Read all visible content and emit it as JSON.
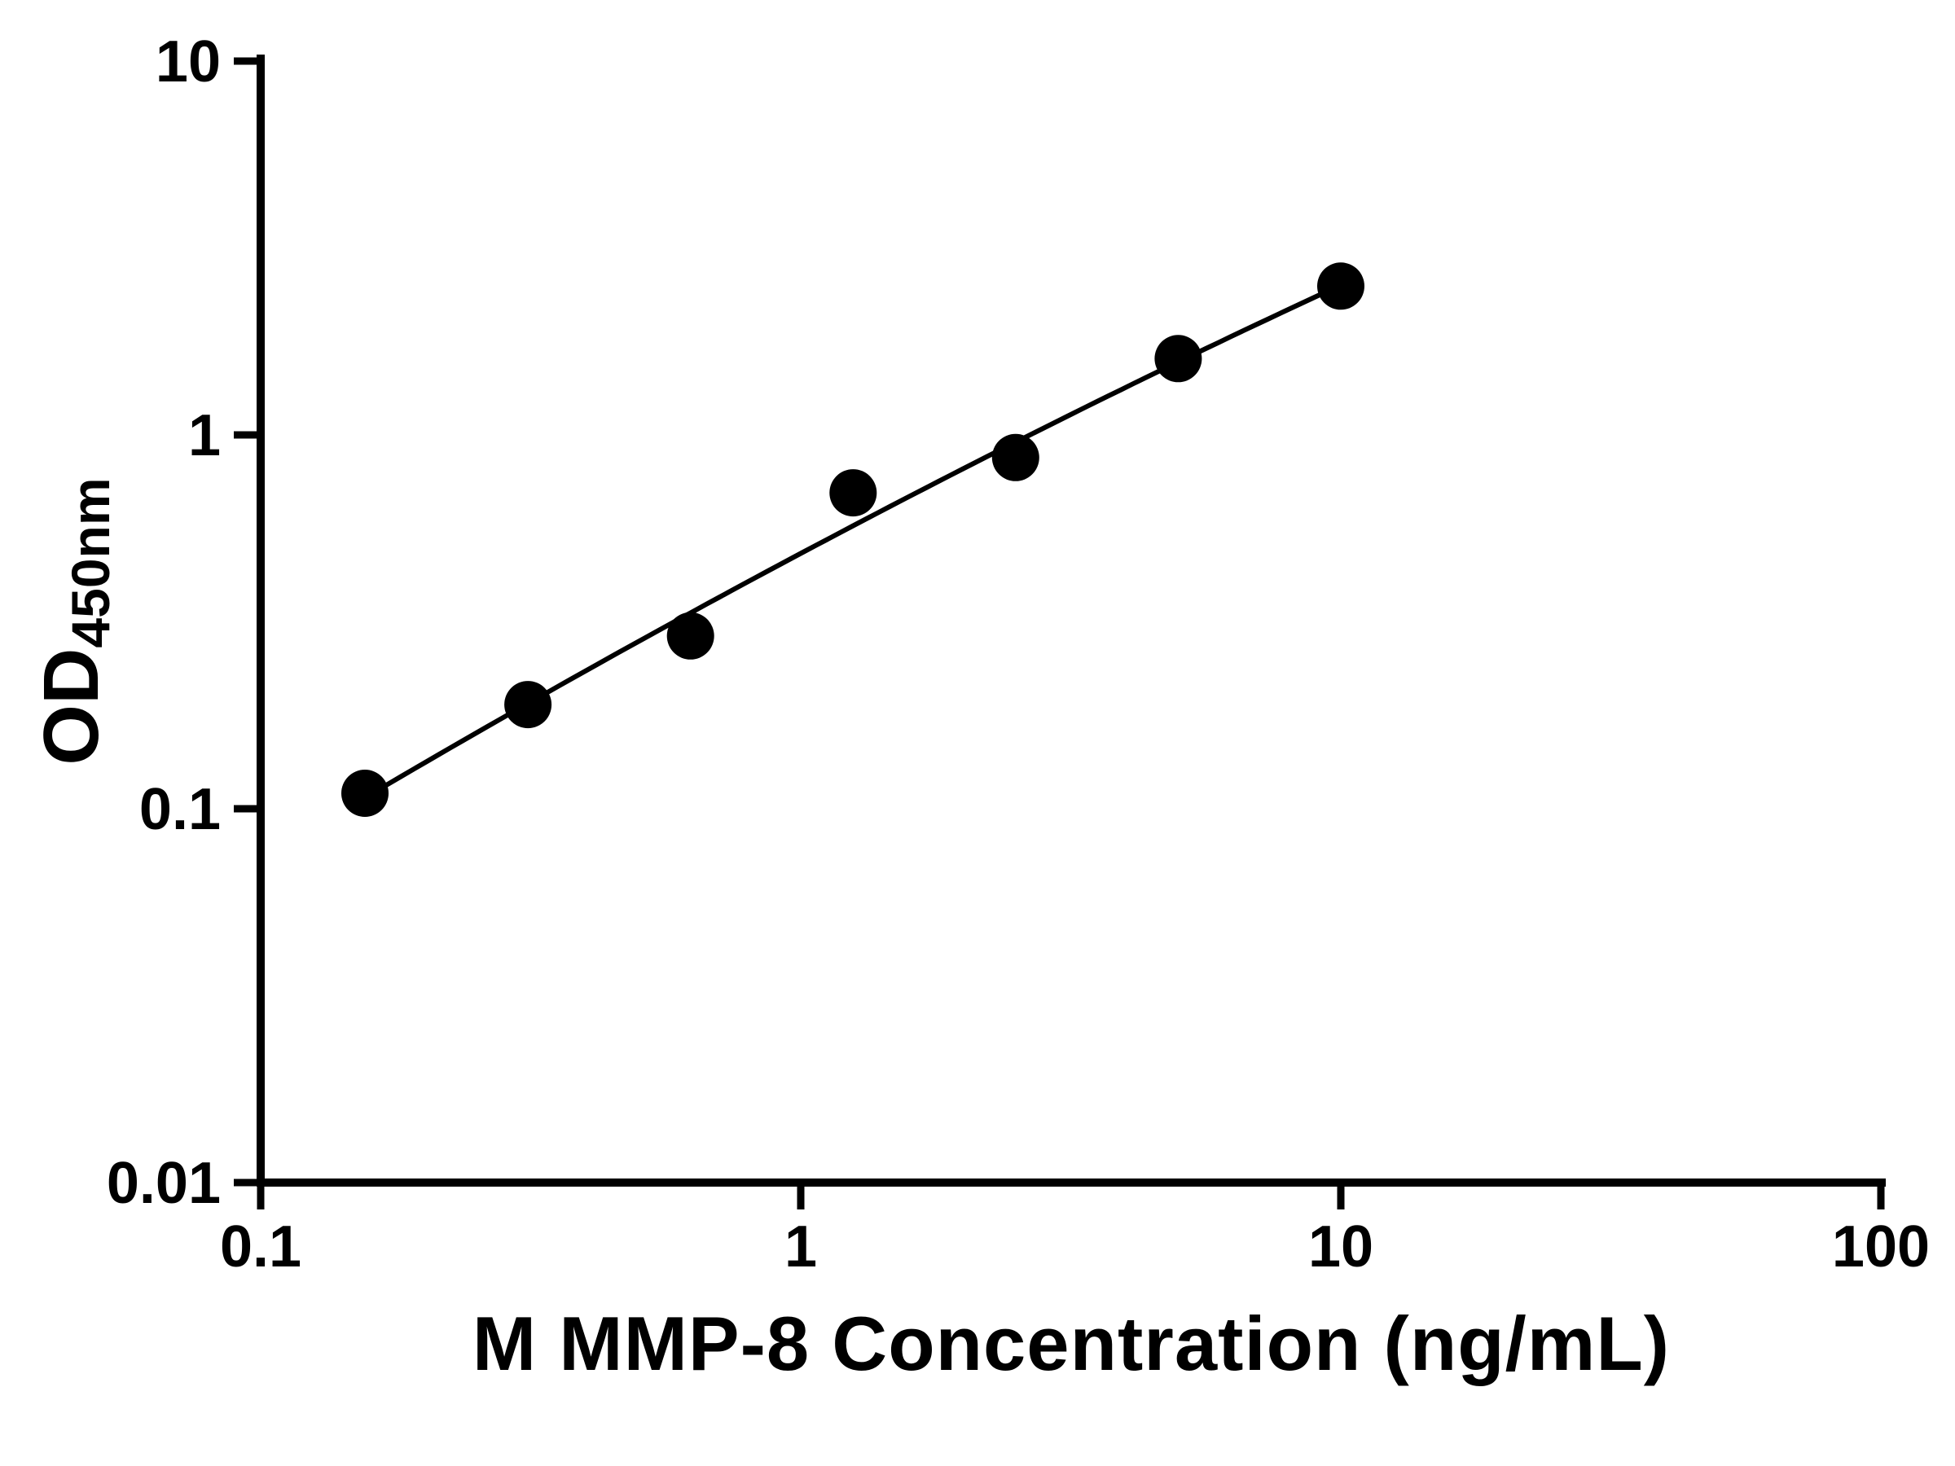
{
  "figure": {
    "background": "#ffffff",
    "axis_color": "#000000",
    "text_color": "#000000"
  },
  "chart_data": {
    "type": "scatter",
    "title": "",
    "xlabel": "M MMP-8 Concentration (ng/mL)",
    "ylabel": "OD450nm",
    "ylabel_main": "OD",
    "ylabel_sub": "450nm",
    "xscale": "log",
    "yscale": "log",
    "xlim": [
      0.1,
      100
    ],
    "ylim": [
      0.01,
      10
    ],
    "x_tick_labels": [
      "0.1",
      "1",
      "10",
      "100"
    ],
    "x_tick_values": [
      0.1,
      1,
      10,
      100
    ],
    "y_tick_labels": [
      "10",
      "1",
      "0.1",
      "0.01"
    ],
    "y_tick_values": [
      10,
      1,
      0.1,
      0.01
    ],
    "grid": false,
    "legend": null,
    "series": [
      {
        "marker": "filled-circle",
        "marker_color": "#000000",
        "line_color": "#000000",
        "fit_line": "smooth curve fit through points",
        "x": [
          0.156,
          0.3125,
          0.625,
          1.25,
          2.5,
          5,
          10
        ],
        "y": [
          0.11,
          0.19,
          0.29,
          0.7,
          0.87,
          1.6,
          2.5
        ]
      }
    ]
  }
}
